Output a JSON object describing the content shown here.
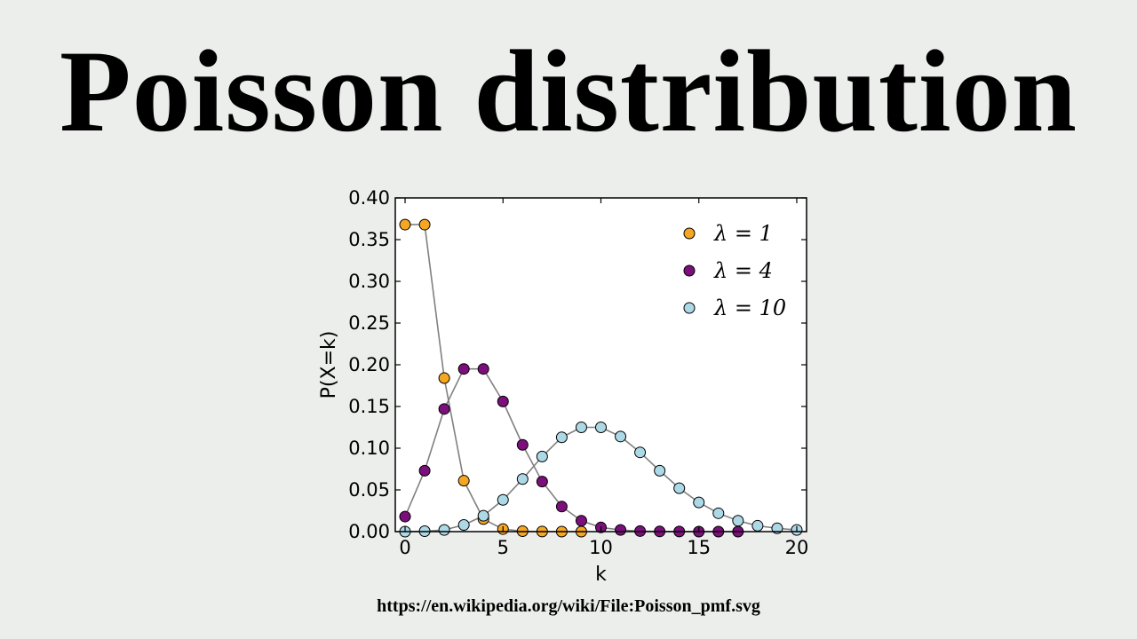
{
  "page": {
    "title": "Poisson distribution",
    "source_url": "https://en.wikipedia.org/wiki/File:Poisson_pmf.svg"
  },
  "chart_data": {
    "type": "line",
    "xlabel": "k",
    "ylabel": "P(X=k)",
    "xlim": [
      -0.5,
      20.5
    ],
    "ylim": [
      0,
      0.4
    ],
    "xticks": [
      0,
      5,
      10,
      15,
      20
    ],
    "yticks": [
      "0.00",
      "0.05",
      "0.10",
      "0.15",
      "0.20",
      "0.25",
      "0.30",
      "0.35",
      "0.40"
    ],
    "legend_position": "top-right",
    "grid": false,
    "series": [
      {
        "name": "λ = 1",
        "color": "#f5a623",
        "x": [
          0,
          1,
          2,
          3,
          4,
          5,
          6,
          7,
          8,
          9
        ],
        "values": [
          0.368,
          0.368,
          0.184,
          0.061,
          0.015,
          0.003,
          0.0005,
          0.0001,
          0.0,
          0.0
        ]
      },
      {
        "name": "λ = 4",
        "color": "#7b0f7b",
        "x": [
          0,
          1,
          2,
          3,
          4,
          5,
          6,
          7,
          8,
          9,
          10,
          11,
          12,
          13,
          14,
          15,
          16,
          17
        ],
        "values": [
          0.018,
          0.073,
          0.147,
          0.195,
          0.195,
          0.156,
          0.104,
          0.06,
          0.03,
          0.013,
          0.005,
          0.002,
          0.0006,
          0.0002,
          0.0001,
          0.0,
          0.0,
          0.0
        ]
      },
      {
        "name": "λ = 10",
        "color": "#add8e6",
        "x": [
          0,
          1,
          2,
          3,
          4,
          5,
          6,
          7,
          8,
          9,
          10,
          11,
          12,
          13,
          14,
          15,
          16,
          17,
          18,
          19,
          20
        ],
        "values": [
          0.0,
          0.0005,
          0.002,
          0.008,
          0.019,
          0.038,
          0.063,
          0.09,
          0.113,
          0.125,
          0.125,
          0.114,
          0.095,
          0.073,
          0.052,
          0.035,
          0.022,
          0.013,
          0.007,
          0.004,
          0.002
        ]
      }
    ]
  }
}
